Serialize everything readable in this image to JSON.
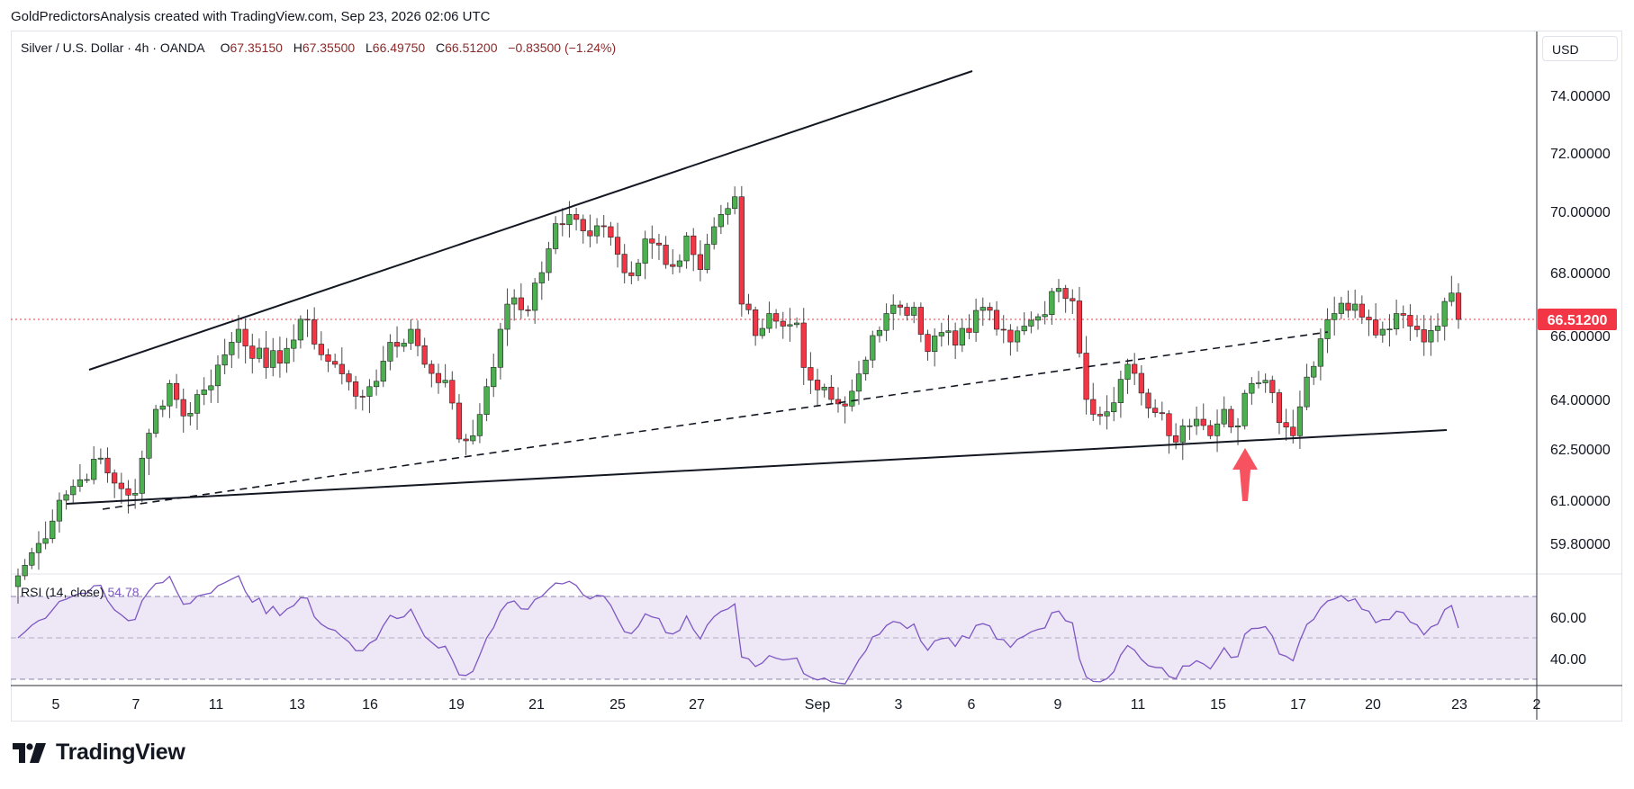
{
  "header": {
    "caption": "GoldPredictorsAnalysis created with TradingView.com, Sep 23, 2026 02:06 UTC"
  },
  "legend": {
    "symbol": "Silver / U.S. Dollar · 4h · OANDA",
    "open_label": "O",
    "open": "67.35150",
    "high_label": "H",
    "high": "67.35500",
    "low_label": "L",
    "low": "66.49750",
    "close_label": "C",
    "close": "66.51200",
    "change": "−0.83500 (−1.24%)"
  },
  "price_scale": {
    "currency": "USD",
    "last_price": "66.51200"
  },
  "rsi": {
    "label": "RSI (14, close)",
    "value": "54.78"
  },
  "brand": {
    "name": "TradingView"
  },
  "colors": {
    "up": "#089981",
    "up_body": "#4caf50",
    "down": "#f23645",
    "rsi_line": "#7e57c2",
    "rsi_band": "#ede7f6",
    "arrow": "#f7525f"
  },
  "chart_data": [
    {
      "type": "candlestick",
      "title": "Silver / U.S. Dollar · 4h · OANDA",
      "ylim": [
        58.8,
        75.8
      ],
      "y_ticks": [
        "74.00000",
        "72.00000",
        "70.00000",
        "68.00000",
        "66.00000",
        "64.00000",
        "62.50000",
        "61.00000",
        "59.80000"
      ],
      "x_ticks": [
        "5",
        "7",
        "11",
        "13",
        "16",
        "19",
        "21",
        "25",
        "27",
        "Sep",
        "3",
        "6",
        "9",
        "11",
        "15",
        "17",
        "20",
        "23",
        "2"
      ],
      "waypoints_close": [
        [
          0,
          58.9
        ],
        [
          3,
          59.8
        ],
        [
          6,
          61.0
        ],
        [
          9,
          61.6
        ],
        [
          11,
          62.2
        ],
        [
          14,
          61.5
        ],
        [
          17,
          61.2
        ],
        [
          20,
          63.7
        ],
        [
          22,
          64.5
        ],
        [
          24,
          63.5
        ],
        [
          27,
          64.3
        ],
        [
          30,
          65.4
        ],
        [
          32,
          66.2
        ],
        [
          36,
          65.0
        ],
        [
          39,
          65.6
        ],
        [
          42,
          66.5
        ],
        [
          44,
          65.4
        ],
        [
          46,
          65.1
        ],
        [
          49,
          64.1
        ],
        [
          51,
          64.4
        ],
        [
          53,
          65.2
        ],
        [
          57,
          66.2
        ],
        [
          59,
          65.1
        ],
        [
          62,
          64.6
        ],
        [
          64,
          62.8
        ],
        [
          66,
          62.9
        ],
        [
          68,
          64.4
        ],
        [
          70,
          66.2
        ],
        [
          72,
          67.2
        ],
        [
          74,
          66.8
        ],
        [
          76,
          68.0
        ],
        [
          78,
          69.6
        ],
        [
          80,
          69.9
        ],
        [
          83,
          69.2
        ],
        [
          85,
          69.5
        ],
        [
          87,
          68.6
        ],
        [
          89,
          67.9
        ],
        [
          91,
          69.1
        ],
        [
          93,
          68.9
        ],
        [
          95,
          68.2
        ],
        [
          97,
          69.2
        ],
        [
          99,
          68.1
        ],
        [
          101,
          69.5
        ],
        [
          103,
          70.1
        ],
        [
          104,
          70.5
        ],
        [
          105,
          67.0
        ],
        [
          107,
          66.0
        ],
        [
          109,
          66.7
        ],
        [
          111,
          66.3
        ],
        [
          113,
          66.4
        ],
        [
          114,
          65.0
        ],
        [
          116,
          64.3
        ],
        [
          118,
          64.0
        ],
        [
          120,
          63.8
        ],
        [
          122,
          64.8
        ],
        [
          124,
          66.0
        ],
        [
          126,
          66.7
        ],
        [
          128,
          66.9
        ],
        [
          130,
          66.9
        ],
        [
          132,
          65.5
        ],
        [
          134,
          66.1
        ],
        [
          136,
          65.7
        ],
        [
          138,
          66.1
        ],
        [
          140,
          66.9
        ],
        [
          142,
          66.2
        ],
        [
          144,
          65.8
        ],
        [
          146,
          66.3
        ],
        [
          148,
          66.6
        ],
        [
          150,
          67.4
        ],
        [
          151,
          67.5
        ],
        [
          153,
          67.1
        ],
        [
          155,
          64.0
        ],
        [
          157,
          63.5
        ],
        [
          159,
          63.9
        ],
        [
          161,
          65.1
        ],
        [
          163,
          64.2
        ],
        [
          165,
          63.6
        ],
        [
          167,
          62.9
        ],
        [
          169,
          63.2
        ],
        [
          171,
          63.4
        ],
        [
          173,
          62.9
        ],
        [
          175,
          63.7
        ],
        [
          177,
          63.2
        ],
        [
          179,
          64.5
        ],
        [
          181,
          64.6
        ],
        [
          183,
          63.3
        ],
        [
          185,
          62.9
        ],
        [
          187,
          64.7
        ],
        [
          189,
          65.9
        ],
        [
          191,
          66.7
        ],
        [
          193,
          66.8
        ],
        [
          194,
          67.0
        ],
        [
          196,
          66.5
        ],
        [
          198,
          66.2
        ],
        [
          200,
          66.7
        ],
        [
          202,
          66.3
        ],
        [
          204,
          65.8
        ],
        [
          206,
          66.3
        ],
        [
          208,
          67.35
        ],
        [
          209,
          66.512
        ]
      ],
      "series_note": "Intermediate candles are interpolated between the waypoint closes above."
    },
    {
      "type": "line",
      "title": "RSI (14, close)",
      "ylim": [
        30,
        70
      ],
      "y_ticks": [
        "60.00",
        "40.00"
      ],
      "last_value": 54.78
    }
  ]
}
